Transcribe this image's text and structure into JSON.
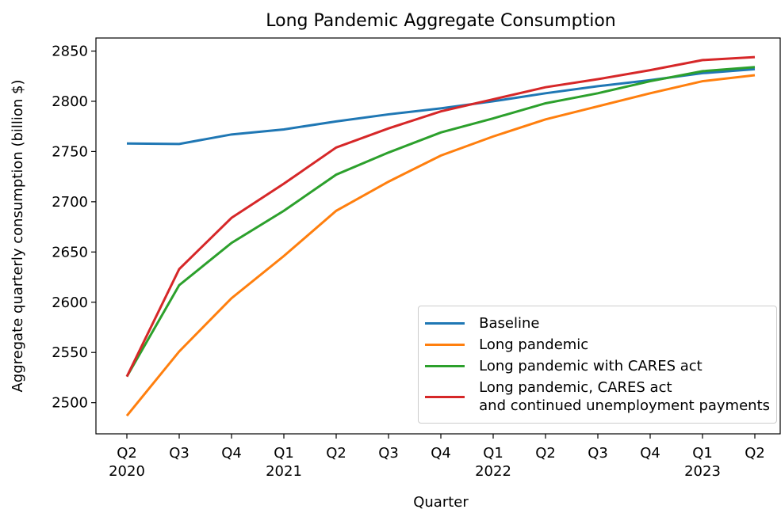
{
  "chart_data": {
    "type": "line",
    "title": "Long Pandemic Aggregate Consumption",
    "xlabel": "Quarter",
    "ylabel": "Aggregate quarterly consumption (billion $)",
    "categories": [
      "Q2\n2020",
      "Q3",
      "Q4",
      "Q1\n2021",
      "Q2",
      "Q3",
      "Q4",
      "Q1\n2022",
      "Q2",
      "Q3",
      "Q4",
      "Q1\n2023",
      "Q2"
    ],
    "series": [
      {
        "name": "Baseline",
        "color": "#1f77b4",
        "values": [
          2758,
          2757.5,
          2767,
          2772,
          2780,
          2787,
          2793,
          2800,
          2808,
          2815,
          2821,
          2828,
          2832
        ]
      },
      {
        "name": "Long pandemic",
        "color": "#ff7f0e",
        "values": [
          2487,
          2551,
          2604,
          2646,
          2691,
          2720,
          2746,
          2765,
          2782,
          2795,
          2808,
          2820,
          2826
        ]
      },
      {
        "name": "Long pandemic with CARES act",
        "color": "#2ca02c",
        "values": [
          2526,
          2617,
          2659,
          2691,
          2727,
          2749,
          2769,
          2783,
          2798,
          2808,
          2820,
          2830,
          2834
        ]
      },
      {
        "name": "Long pandemic, CARES act\nand continued unemployment payments",
        "color": "#d62728",
        "values": [
          2526,
          2633,
          2684,
          2718,
          2754,
          2773,
          2790,
          2802,
          2814,
          2822,
          2831,
          2841,
          2844
        ]
      }
    ],
    "ylim": [
      2469,
      2863
    ],
    "yticks": [
      2500,
      2550,
      2600,
      2650,
      2700,
      2750,
      2800,
      2850
    ],
    "legend": "lower right"
  }
}
